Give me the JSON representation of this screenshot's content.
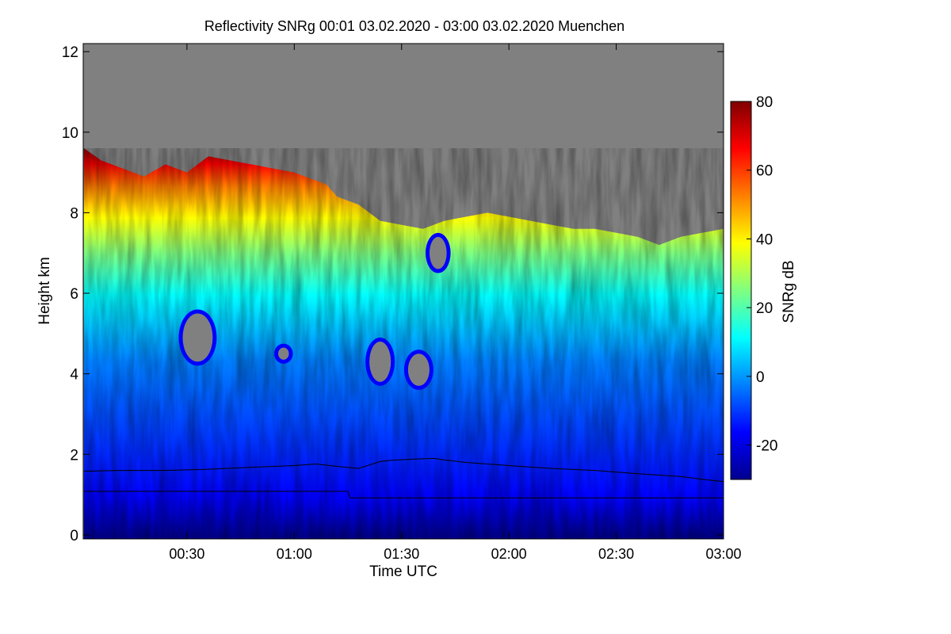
{
  "chart_data": {
    "type": "heatmap",
    "title": "Reflectivity SNRg   00:01 03.02.2020 - 03:00 03.02.2020 Muenchen",
    "xlabel": "Time UTC",
    "ylabel": "Height km",
    "colorbar_label": "SNRg dB",
    "xlim": [
      0.0167,
      3.0
    ],
    "ylim": [
      -0.1,
      12.2
    ],
    "x_ticks": [
      {
        "value": 0.5,
        "label": "00:30"
      },
      {
        "value": 1.0,
        "label": "01:00"
      },
      {
        "value": 1.5,
        "label": "01:30"
      },
      {
        "value": 2.0,
        "label": "02:00"
      },
      {
        "value": 2.5,
        "label": "02:30"
      },
      {
        "value": 3.0,
        "label": "03:00"
      }
    ],
    "y_ticks": [
      {
        "value": 0,
        "label": "0"
      },
      {
        "value": 2,
        "label": "2"
      },
      {
        "value": 4,
        "label": "4"
      },
      {
        "value": 6,
        "label": "6"
      },
      {
        "value": 8,
        "label": "8"
      },
      {
        "value": 10,
        "label": "10"
      },
      {
        "value": 12,
        "label": "12"
      }
    ],
    "colorbar": {
      "range": [
        -30,
        80
      ],
      "ticks": [
        {
          "value": -20,
          "label": "-20"
        },
        {
          "value": 0,
          "label": "0"
        },
        {
          "value": 20,
          "label": "20"
        },
        {
          "value": 40,
          "label": "40"
        },
        {
          "value": 60,
          "label": "60"
        },
        {
          "value": 80,
          "label": "80"
        }
      ],
      "colors": [
        "#00008f",
        "#0000ff",
        "#0080ff",
        "#00ffff",
        "#80ff80",
        "#ffff00",
        "#ff8000",
        "#ff0000",
        "#800000"
      ]
    },
    "no_signal_color": "#808080",
    "signal_top": [
      [
        0.02,
        9.6
      ],
      [
        0.1,
        9.3
      ],
      [
        0.2,
        9.1
      ],
      [
        0.3,
        8.9
      ],
      [
        0.4,
        9.2
      ],
      [
        0.5,
        9.0
      ],
      [
        0.6,
        9.4
      ],
      [
        0.7,
        9.3
      ],
      [
        0.8,
        9.2
      ],
      [
        0.9,
        9.1
      ],
      [
        1.0,
        9.0
      ],
      [
        1.1,
        8.8
      ],
      [
        1.15,
        8.7
      ],
      [
        1.2,
        8.4
      ],
      [
        1.3,
        8.2
      ],
      [
        1.4,
        7.8
      ],
      [
        1.5,
        7.7
      ],
      [
        1.6,
        7.6
      ],
      [
        1.7,
        7.8
      ],
      [
        1.8,
        7.9
      ],
      [
        1.9,
        8.0
      ],
      [
        2.0,
        7.9
      ],
      [
        2.1,
        7.8
      ],
      [
        2.2,
        7.7
      ],
      [
        2.3,
        7.6
      ],
      [
        2.4,
        7.6
      ],
      [
        2.5,
        7.5
      ],
      [
        2.6,
        7.4
      ],
      [
        2.7,
        7.2
      ],
      [
        2.8,
        7.4
      ],
      [
        2.9,
        7.5
      ],
      [
        3.0,
        7.6
      ]
    ],
    "signal_gaps": [
      {
        "t": 0.55,
        "h": 4.9,
        "dt": 0.14,
        "dh": 1.2
      },
      {
        "t": 1.4,
        "h": 4.3,
        "dt": 0.1,
        "dh": 1.0
      },
      {
        "t": 1.58,
        "h": 4.1,
        "dt": 0.1,
        "dh": 0.8
      },
      {
        "t": 0.95,
        "h": 4.5,
        "dt": 0.05,
        "dh": 0.3
      },
      {
        "t": 1.67,
        "h": 7.0,
        "dt": 0.08,
        "dh": 0.8
      }
    ],
    "series": [
      {
        "x": [
          0.02,
          0.2,
          0.4,
          0.6,
          0.8,
          1.0,
          1.1,
          1.2,
          1.3,
          1.4,
          1.45,
          1.55,
          1.65,
          1.7,
          1.8,
          2.0,
          2.2,
          2.4,
          2.6,
          2.8,
          2.9,
          3.0
        ],
        "y": [
          1.58,
          1.6,
          1.6,
          1.63,
          1.68,
          1.72,
          1.76,
          1.7,
          1.65,
          1.82,
          1.85,
          1.88,
          1.9,
          1.86,
          1.8,
          1.72,
          1.65,
          1.6,
          1.52,
          1.45,
          1.38,
          1.32
        ]
      },
      {
        "x": [
          0.02,
          1.25,
          1.26,
          3.0
        ],
        "y": [
          1.08,
          1.08,
          0.92,
          0.92
        ]
      }
    ]
  }
}
